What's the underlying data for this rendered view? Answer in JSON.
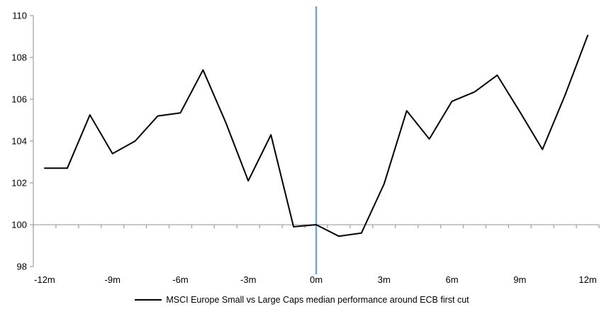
{
  "chart_data": {
    "type": "line",
    "title": "",
    "xlabel": "",
    "ylabel": "",
    "x_unit": "months relative to ECB first cut",
    "x": [
      -12,
      -11,
      -10,
      -9,
      -8,
      -7,
      -6,
      -5,
      -4,
      -3,
      -2,
      -1,
      0,
      1,
      2,
      3,
      4,
      5,
      6,
      7,
      8,
      9,
      10,
      11,
      12
    ],
    "series": [
      {
        "name": "MSCI Europe Small vs Large Caps median performance around ECB first cut",
        "values": [
          102.7,
          102.7,
          105.25,
          103.4,
          104.0,
          105.2,
          105.35,
          107.4,
          104.9,
          102.1,
          104.3,
          99.9,
          100.0,
          99.45,
          99.6,
          101.95,
          105.45,
          104.1,
          105.9,
          106.35,
          107.15,
          105.4,
          103.6,
          106.2,
          109.05
        ]
      }
    ],
    "ylim": [
      98,
      110
    ],
    "xlim": [
      -12.5,
      12.5
    ],
    "y_ticks": [
      98,
      100,
      102,
      104,
      106,
      108,
      110
    ],
    "y_tick_labels": [
      "98",
      "100",
      "102",
      "104",
      "106",
      "108",
      "110"
    ],
    "x_tick_positions": [
      -12,
      -9,
      -6,
      -3,
      0,
      3,
      6,
      9,
      12
    ],
    "x_tick_labels": [
      "-12m",
      "-9m",
      "-6m",
      "-3m",
      "0m",
      "3m",
      "6m",
      "9m",
      "12m"
    ],
    "baseline_value": 100,
    "event_line_x": 0,
    "grid": "off",
    "legend_position": "bottom-center",
    "colors": {
      "series_line": "#000000",
      "event_line": "#74A4CF",
      "axis_line": "#A6A6A6",
      "tick_text": "#000000"
    }
  },
  "legend": {
    "label": "MSCI Europe Small vs Large Caps median performance around ECB first cut"
  }
}
